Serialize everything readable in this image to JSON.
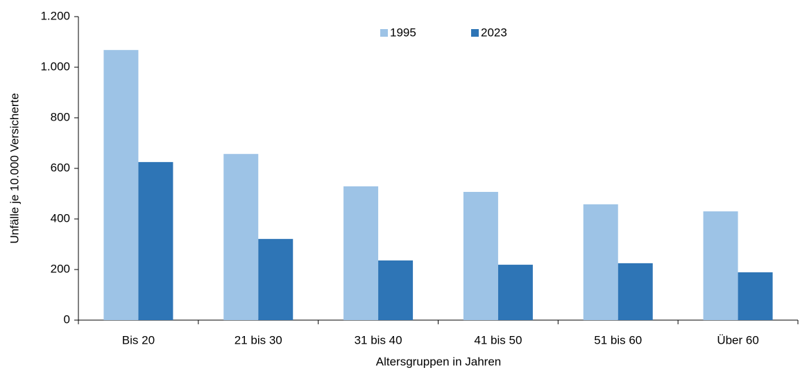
{
  "chart_data": {
    "type": "bar",
    "categories": [
      "Bis 20",
      "21 bis 30",
      "31 bis 40",
      "41 bis 50",
      "51 bis 60",
      "Über 60"
    ],
    "series": [
      {
        "name": "1995",
        "color": "#9dc3e6",
        "values": [
          1068,
          657,
          529,
          507,
          458,
          430
        ]
      },
      {
        "name": "2023",
        "color": "#2e75b6",
        "values": [
          625,
          321,
          236,
          219,
          225,
          189
        ]
      }
    ],
    "y_label": "Unfälle je 10.000 Versicherte",
    "x_label": "Altersgruppen in Jahren",
    "ylim": [
      0,
      1200
    ],
    "yticks": [
      0,
      200,
      400,
      600,
      800,
      {
        "value": 1000,
        "label": "1.000"
      },
      {
        "value": 1200,
        "label": "1.200"
      }
    ],
    "grid": false,
    "legend": "top"
  }
}
